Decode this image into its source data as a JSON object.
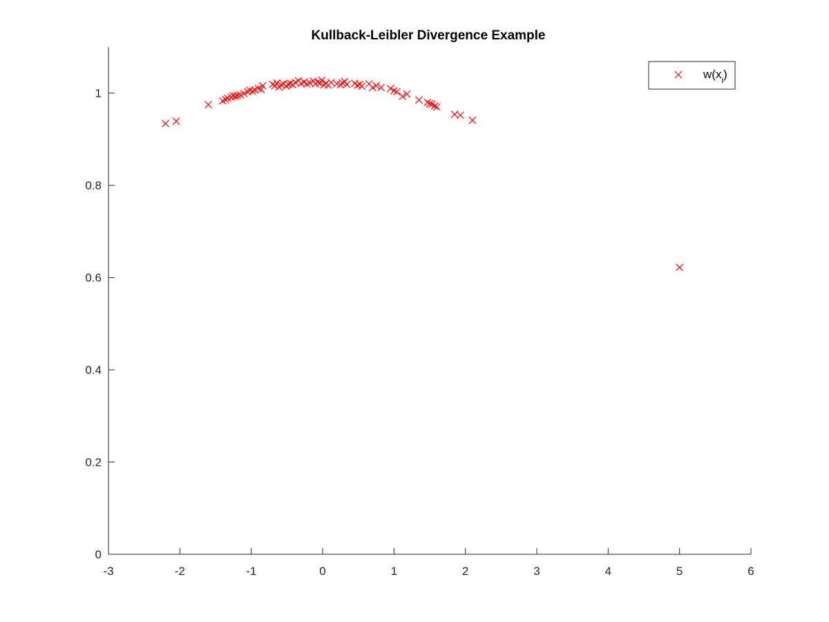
{
  "chart_data": {
    "type": "scatter",
    "title": "Kullback-Leibler Divergence Example",
    "xlabel": "",
    "ylabel": "",
    "xlim": [
      -3,
      6
    ],
    "ylim": [
      0,
      1.1
    ],
    "x_ticks": [
      "-3",
      "-2",
      "-1",
      "0",
      "1",
      "2",
      "3",
      "4",
      "5",
      "6"
    ],
    "y_ticks": [
      "0",
      "0.2",
      "0.4",
      "0.6",
      "0.8",
      "1"
    ],
    "grid": false,
    "legend_position": "top-right",
    "marker": "x",
    "color": "#ff0000",
    "series": [
      {
        "name": "w(x_i)",
        "legend_text": "w(x",
        "legend_subscript": "i",
        "legend_suffix": ")",
        "points": [
          [
            -2.2,
            0.934
          ],
          [
            -2.05,
            0.939
          ],
          [
            -1.6,
            0.975
          ],
          [
            -1.4,
            0.983
          ],
          [
            -1.36,
            0.986
          ],
          [
            -1.33,
            0.989
          ],
          [
            -1.28,
            0.991
          ],
          [
            -1.25,
            0.994
          ],
          [
            -1.22,
            0.993
          ],
          [
            -1.19,
            0.995
          ],
          [
            -1.15,
            0.996
          ],
          [
            -1.1,
            0.999
          ],
          [
            -1.05,
            1.003
          ],
          [
            -1.02,
            1.006
          ],
          [
            -0.98,
            1.004
          ],
          [
            -0.95,
            1.007
          ],
          [
            -0.9,
            1.01
          ],
          [
            -0.86,
            1.008
          ],
          [
            -0.84,
            1.016
          ],
          [
            -0.7,
            1.019
          ],
          [
            -0.67,
            1.016
          ],
          [
            -0.64,
            1.022
          ],
          [
            -0.61,
            1.013
          ],
          [
            -0.58,
            1.018
          ],
          [
            -0.55,
            1.02
          ],
          [
            -0.51,
            1.015
          ],
          [
            -0.48,
            1.019
          ],
          [
            -0.45,
            1.021
          ],
          [
            -0.42,
            1.018
          ],
          [
            -0.38,
            1.023
          ],
          [
            -0.34,
            1.027
          ],
          [
            -0.3,
            1.021
          ],
          [
            -0.26,
            1.024
          ],
          [
            -0.22,
            1.02
          ],
          [
            -0.18,
            1.022
          ],
          [
            -0.13,
            1.026
          ],
          [
            -0.1,
            1.02
          ],
          [
            -0.07,
            1.024
          ],
          [
            -0.04,
            1.022
          ],
          [
            -0.01,
            1.028
          ],
          [
            0.02,
            1.018
          ],
          [
            0.05,
            1.021
          ],
          [
            0.08,
            1.017
          ],
          [
            0.12,
            1.023
          ],
          [
            0.2,
            1.02
          ],
          [
            0.25,
            1.018
          ],
          [
            0.28,
            1.022
          ],
          [
            0.31,
            1.025
          ],
          [
            0.34,
            1.019
          ],
          [
            0.45,
            1.021
          ],
          [
            0.49,
            1.017
          ],
          [
            0.52,
            1.019
          ],
          [
            0.55,
            1.015
          ],
          [
            0.65,
            1.02
          ],
          [
            0.7,
            1.012
          ],
          [
            0.75,
            1.016
          ],
          [
            0.82,
            1.012
          ],
          [
            0.95,
            1.01
          ],
          [
            1.0,
            1.005
          ],
          [
            1.04,
            1.003
          ],
          [
            1.12,
            0.993
          ],
          [
            1.18,
            0.998
          ],
          [
            1.35,
            0.985
          ],
          [
            1.47,
            0.98
          ],
          [
            1.5,
            0.977
          ],
          [
            1.53,
            0.976
          ],
          [
            1.57,
            0.972
          ],
          [
            1.6,
            0.97
          ],
          [
            1.85,
            0.954
          ],
          [
            1.93,
            0.952
          ],
          [
            2.1,
            0.941
          ],
          [
            5.0,
            0.622
          ]
        ]
      }
    ]
  }
}
